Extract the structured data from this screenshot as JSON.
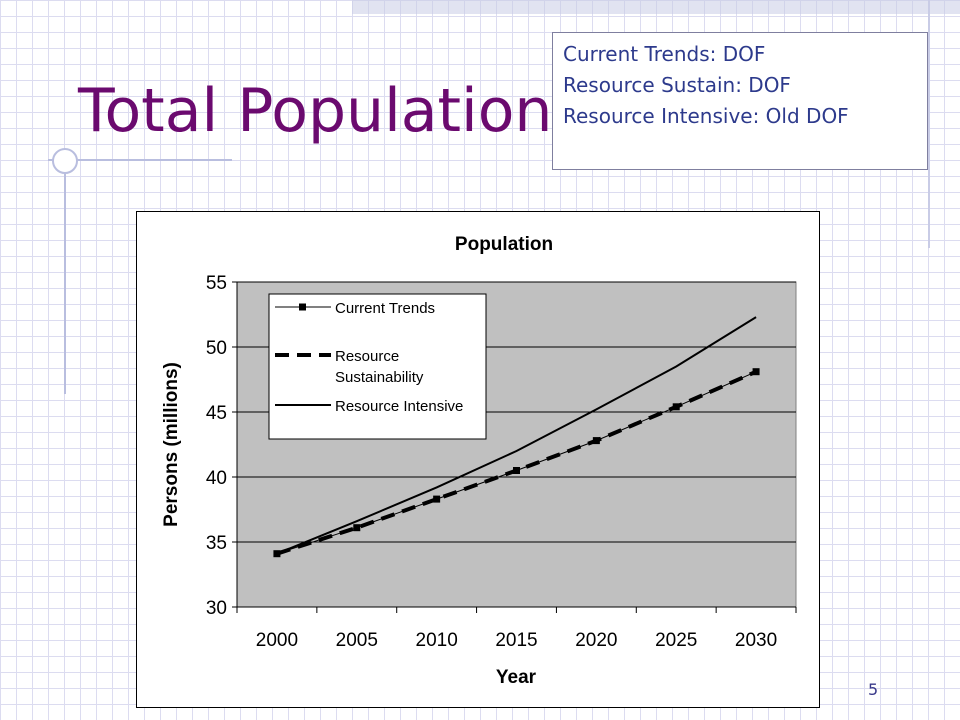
{
  "slide": {
    "title": "Total Population",
    "notes": [
      "Current Trends: DOF",
      "Resource Sustain: DOF",
      "Resource Intensive: Old DOF"
    ],
    "page_number": "5"
  },
  "colors": {
    "title": "#6b0a6f",
    "notes_text": "#2d3a8c",
    "plot_bg": "#c0c0c0"
  },
  "chart_data": {
    "type": "line",
    "title": "Population",
    "xlabel": "Year",
    "ylabel": "Persons (millions)",
    "categories": [
      "2000",
      "2005",
      "2010",
      "2015",
      "2020",
      "2025",
      "2030"
    ],
    "x": [
      2002.5,
      2007.5,
      2012.5,
      2017.5,
      2022.5,
      2027.5,
      2032.5
    ],
    "ylim": [
      30,
      55
    ],
    "yticks": [
      30,
      35,
      40,
      45,
      50,
      55
    ],
    "grid": true,
    "legend_position": "top-left",
    "series": [
      {
        "name": "Current Trends",
        "style": "solid-square-markers",
        "values": [
          34.1,
          36.1,
          38.3,
          40.5,
          42.8,
          45.4,
          48.1
        ]
      },
      {
        "name": "Resource Sustainability",
        "style": "dashed",
        "values": [
          34.1,
          36.1,
          38.3,
          40.5,
          42.8,
          45.4,
          48.1
        ]
      },
      {
        "name": "Resource Intensive",
        "style": "solid",
        "values": [
          34.1,
          36.6,
          39.2,
          42.0,
          45.2,
          48.5,
          52.3
        ]
      }
    ]
  }
}
